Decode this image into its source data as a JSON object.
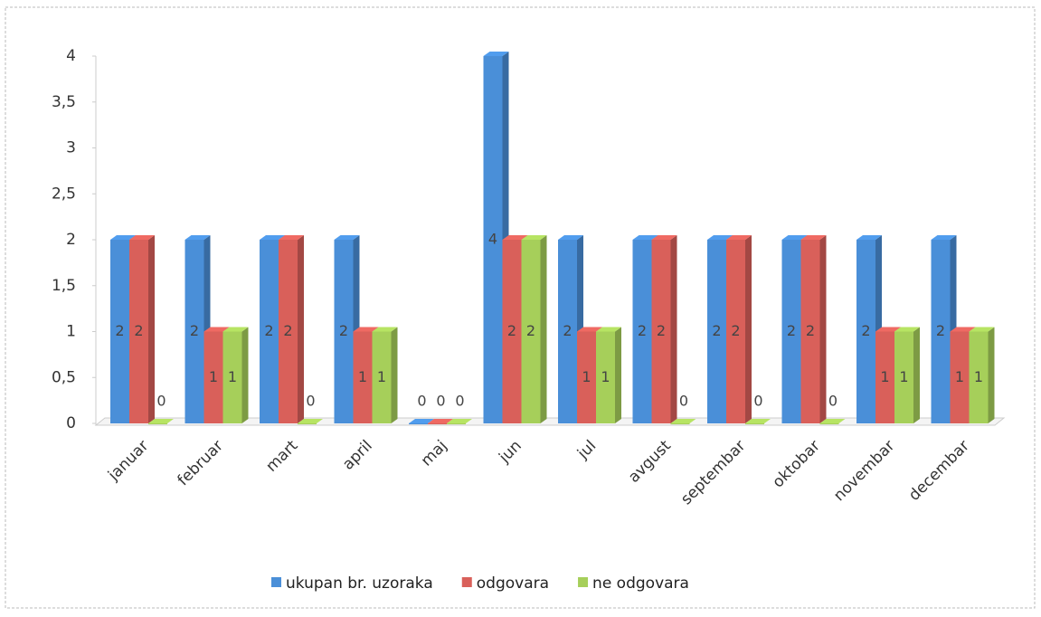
{
  "chart_data": {
    "type": "bar3d",
    "categories": [
      "januar",
      "februar",
      "mart",
      "april",
      "maj",
      "jun",
      "jul",
      "avgust",
      "septembar",
      "oktobar",
      "novembar",
      "decembar"
    ],
    "series": [
      {
        "name": "ukupan br. uzoraka",
        "color": "#4a8fd8",
        "values": [
          2,
          2,
          2,
          2,
          0,
          4,
          2,
          2,
          2,
          2,
          2,
          2
        ]
      },
      {
        "name": "odgovara",
        "color": "#d9605a",
        "values": [
          2,
          1,
          2,
          1,
          0,
          2,
          1,
          2,
          2,
          2,
          1,
          1
        ]
      },
      {
        "name": "ne odgovara",
        "color": "#a6cf5a",
        "values": [
          0,
          1,
          0,
          1,
          0,
          2,
          1,
          0,
          0,
          0,
          1,
          1
        ]
      }
    ],
    "ylim": [
      0,
      4
    ],
    "yticks": [
      0,
      {
        "value": 0.5,
        "label": "0,5"
      },
      1,
      {
        "value": 1.5,
        "label": "1,5"
      },
      2,
      {
        "value": 2.5,
        "label": "2,5"
      },
      3,
      {
        "value": 3.5,
        "label": "3,5"
      },
      4
    ],
    "legend": "bottom"
  }
}
